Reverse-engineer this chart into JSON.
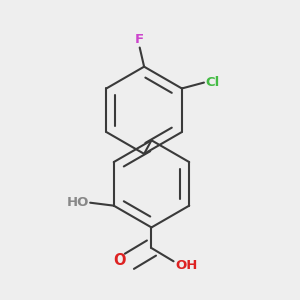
{
  "bg_color": "#eeeeee",
  "bond_color": "#3a3a3a",
  "bond_width": 1.5,
  "dbo": 0.012,
  "F_label": "F",
  "F_color": "#cc44cc",
  "Cl_label": "Cl",
  "Cl_color": "#44bb44",
  "HO_label": "HO",
  "HO_color": "#888888",
  "O_label": "O",
  "O_color": "#dd2222",
  "OH_label": "OH",
  "OH_color": "#dd2222",
  "font_size": 9.5
}
